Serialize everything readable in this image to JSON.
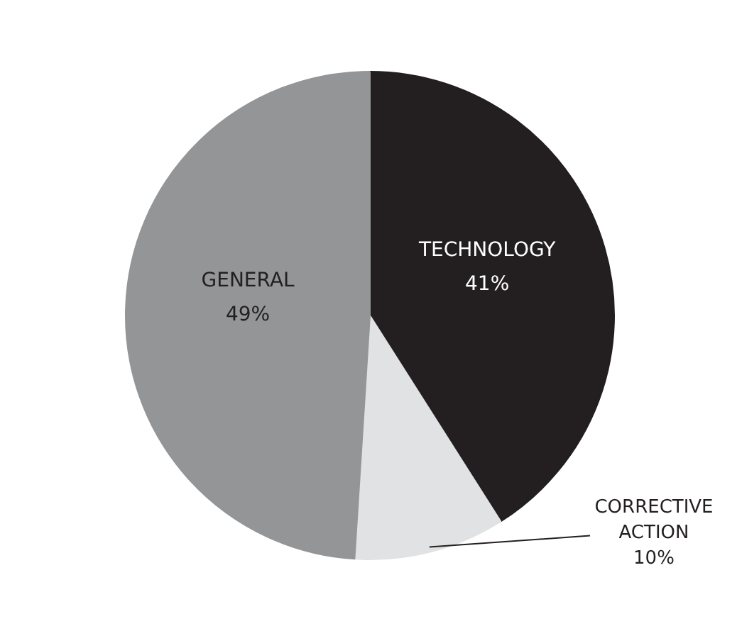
{
  "chart_data": {
    "type": "pie",
    "categories": [
      "TECHNOLOGY",
      "CORRECTIVE ACTION",
      "GENERAL"
    ],
    "values": [
      41,
      10,
      49
    ],
    "colors": [
      "#231f20",
      "#e1e2e4",
      "#949597"
    ],
    "data_labels": true,
    "value_labels": [
      "41%",
      "10%",
      "49%"
    ]
  }
}
